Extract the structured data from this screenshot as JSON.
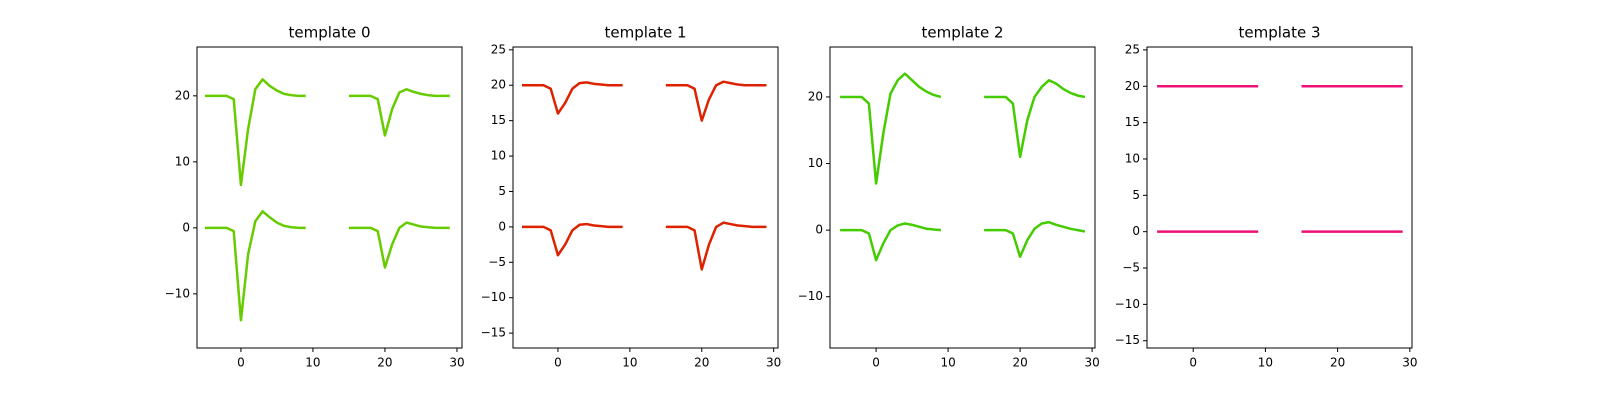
{
  "chart_data": [
    {
      "type": "line",
      "title": "template 0",
      "xlim": [
        -6.1,
        30.7
      ],
      "ylim": [
        -18.2,
        27.4
      ],
      "xticks": [
        0,
        10,
        20,
        30
      ],
      "yticks": [
        {
          "value": -10,
          "label": "−10"
        },
        0,
        10,
        20
      ],
      "series": [
        {
          "color": "#66cc00",
          "x": [
            -5,
            -4,
            -3,
            -2,
            -1,
            0,
            1,
            2,
            3,
            4,
            5,
            6,
            7,
            8,
            9
          ],
          "values": [
            20,
            20,
            20,
            20,
            19.5,
            6.5,
            15,
            21,
            22.5,
            21.5,
            20.8,
            20.3,
            20.1,
            20,
            20
          ]
        },
        {
          "color": "#66cc00",
          "x": [
            15,
            16,
            17,
            18,
            19,
            20,
            21,
            22,
            23,
            24,
            25,
            26,
            27,
            28,
            29
          ],
          "values": [
            20,
            20,
            20,
            20,
            19.5,
            14,
            18,
            20.5,
            21,
            20.6,
            20.3,
            20.1,
            20,
            20,
            20
          ]
        },
        {
          "color": "#66cc00",
          "x": [
            -5,
            -4,
            -3,
            -2,
            -1,
            0,
            1,
            2,
            3,
            4,
            5,
            6,
            7,
            8,
            9
          ],
          "values": [
            0,
            0,
            0,
            0,
            -0.5,
            -14,
            -4,
            1,
            2.5,
            1.6,
            0.8,
            0.3,
            0.1,
            0,
            0
          ]
        },
        {
          "color": "#66cc00",
          "x": [
            15,
            16,
            17,
            18,
            19,
            20,
            21,
            22,
            23,
            24,
            25,
            26,
            27,
            28,
            29
          ],
          "values": [
            0,
            0,
            0,
            0,
            -0.5,
            -6,
            -2.5,
            0,
            0.8,
            0.5,
            0.2,
            0.1,
            0,
            0,
            0
          ]
        }
      ]
    },
    {
      "type": "line",
      "title": "template 1",
      "xlim": [
        -6.25,
        30.6
      ],
      "ylim": [
        -17.1,
        25.4
      ],
      "xticks": [
        0,
        10,
        20,
        30
      ],
      "yticks": [
        {
          "value": -15,
          "label": "−15"
        },
        {
          "value": -10,
          "label": "−10"
        },
        {
          "value": -5,
          "label": "−5"
        },
        0,
        5,
        10,
        15,
        20,
        25
      ],
      "series": [
        {
          "color": "#dd2200",
          "x": [
            -5,
            -4,
            -3,
            -2,
            -1,
            0,
            1,
            2,
            3,
            4,
            5,
            6,
            7,
            8,
            9
          ],
          "values": [
            20,
            20,
            20,
            20,
            19.5,
            16,
            17.5,
            19.5,
            20.3,
            20.4,
            20.2,
            20.1,
            20,
            20,
            20
          ]
        },
        {
          "color": "#dd2200",
          "x": [
            15,
            16,
            17,
            18,
            19,
            20,
            21,
            22,
            23,
            24,
            25,
            26,
            27,
            28,
            29
          ],
          "values": [
            20,
            20,
            20,
            20,
            19.5,
            15,
            18,
            20,
            20.5,
            20.3,
            20.1,
            20,
            20,
            20,
            20
          ]
        },
        {
          "color": "#dd2200",
          "x": [
            -5,
            -4,
            -3,
            -2,
            -1,
            0,
            1,
            2,
            3,
            4,
            5,
            6,
            7,
            8,
            9
          ],
          "values": [
            0,
            0,
            0,
            0,
            -0.5,
            -4,
            -2.5,
            -0.5,
            0.3,
            0.4,
            0.2,
            0.1,
            0,
            0,
            0
          ]
        },
        {
          "color": "#dd2200",
          "x": [
            15,
            16,
            17,
            18,
            19,
            20,
            21,
            22,
            23,
            24,
            25,
            26,
            27,
            28,
            29
          ],
          "values": [
            0,
            0,
            0,
            0,
            -0.5,
            -6,
            -2.5,
            0,
            0.6,
            0.4,
            0.2,
            0.1,
            0,
            0,
            0
          ]
        }
      ]
    },
    {
      "type": "line",
      "title": "template 2",
      "xlim": [
        -6.4,
        30.4
      ],
      "ylim": [
        -17.7,
        27.5
      ],
      "xticks": [
        0,
        10,
        20,
        30
      ],
      "yticks": [
        {
          "value": -10,
          "label": "−10"
        },
        0,
        10,
        20
      ],
      "series": [
        {
          "color": "#44cc00",
          "x": [
            -5,
            -4,
            -3,
            -2,
            -1,
            0,
            1,
            2,
            3,
            4,
            5,
            6,
            7,
            8,
            9
          ],
          "values": [
            20,
            20,
            20,
            20,
            19,
            7,
            14.5,
            20.5,
            22.5,
            23.5,
            22.5,
            21.5,
            20.8,
            20.3,
            20
          ]
        },
        {
          "color": "#44cc00",
          "x": [
            15,
            16,
            17,
            18,
            19,
            20,
            21,
            22,
            23,
            24,
            25,
            26,
            27,
            28,
            29
          ],
          "values": [
            20,
            20,
            20,
            20,
            19,
            11,
            16.5,
            20,
            21.5,
            22.5,
            22,
            21.2,
            20.6,
            20.2,
            20
          ]
        },
        {
          "color": "#44cc00",
          "x": [
            -5,
            -4,
            -3,
            -2,
            -1,
            0,
            1,
            2,
            3,
            4,
            5,
            6,
            7,
            8,
            9
          ],
          "values": [
            0,
            0,
            0,
            0,
            -0.5,
            -4.5,
            -2,
            0,
            0.7,
            1,
            0.8,
            0.5,
            0.2,
            0.1,
            0
          ]
        },
        {
          "color": "#44cc00",
          "x": [
            15,
            16,
            17,
            18,
            19,
            20,
            21,
            22,
            23,
            24,
            25,
            26,
            27,
            28,
            29
          ],
          "values": [
            0,
            0,
            0,
            0,
            -0.5,
            -4,
            -1.5,
            0.2,
            1,
            1.2,
            0.8,
            0.5,
            0.2,
            0,
            -0.2
          ]
        }
      ]
    },
    {
      "type": "line",
      "title": "template 3",
      "xlim": [
        -6.4,
        30.3
      ],
      "ylim": [
        -16,
        25.4
      ],
      "xticks": [
        0,
        10,
        20,
        30
      ],
      "yticks": [
        {
          "value": -15,
          "label": "−15"
        },
        {
          "value": -10,
          "label": "−10"
        },
        {
          "value": -5,
          "label": "−5"
        },
        0,
        5,
        10,
        15,
        20,
        25
      ],
      "series": [
        {
          "color": "#ee1177",
          "x": [
            -5,
            -4,
            -3,
            -2,
            -1,
            0,
            1,
            2,
            3,
            4,
            5,
            6,
            7,
            8,
            9
          ],
          "values": [
            20,
            20,
            20,
            20,
            20,
            20,
            20,
            20,
            20,
            20,
            20,
            20,
            20,
            20,
            20
          ]
        },
        {
          "color": "#ee1177",
          "x": [
            15,
            16,
            17,
            18,
            19,
            20,
            21,
            22,
            23,
            24,
            25,
            26,
            27,
            28,
            29
          ],
          "values": [
            20,
            20,
            20,
            20,
            20,
            20,
            20,
            20,
            20,
            20,
            20,
            20,
            20,
            20,
            20
          ]
        },
        {
          "color": "#ee1177",
          "x": [
            -5,
            -4,
            -3,
            -2,
            -1,
            0,
            1,
            2,
            3,
            4,
            5,
            6,
            7,
            8,
            9
          ],
          "values": [
            0,
            0,
            0,
            0,
            0,
            0,
            0,
            0,
            0,
            0,
            0,
            0,
            0,
            0,
            0
          ]
        },
        {
          "color": "#ee1177",
          "x": [
            15,
            16,
            17,
            18,
            19,
            20,
            21,
            22,
            23,
            24,
            25,
            26,
            27,
            28,
            29
          ],
          "values": [
            0,
            0,
            0,
            0,
            0,
            0,
            0,
            0,
            0,
            0,
            0,
            0,
            0,
            0,
            0
          ]
        }
      ]
    }
  ]
}
